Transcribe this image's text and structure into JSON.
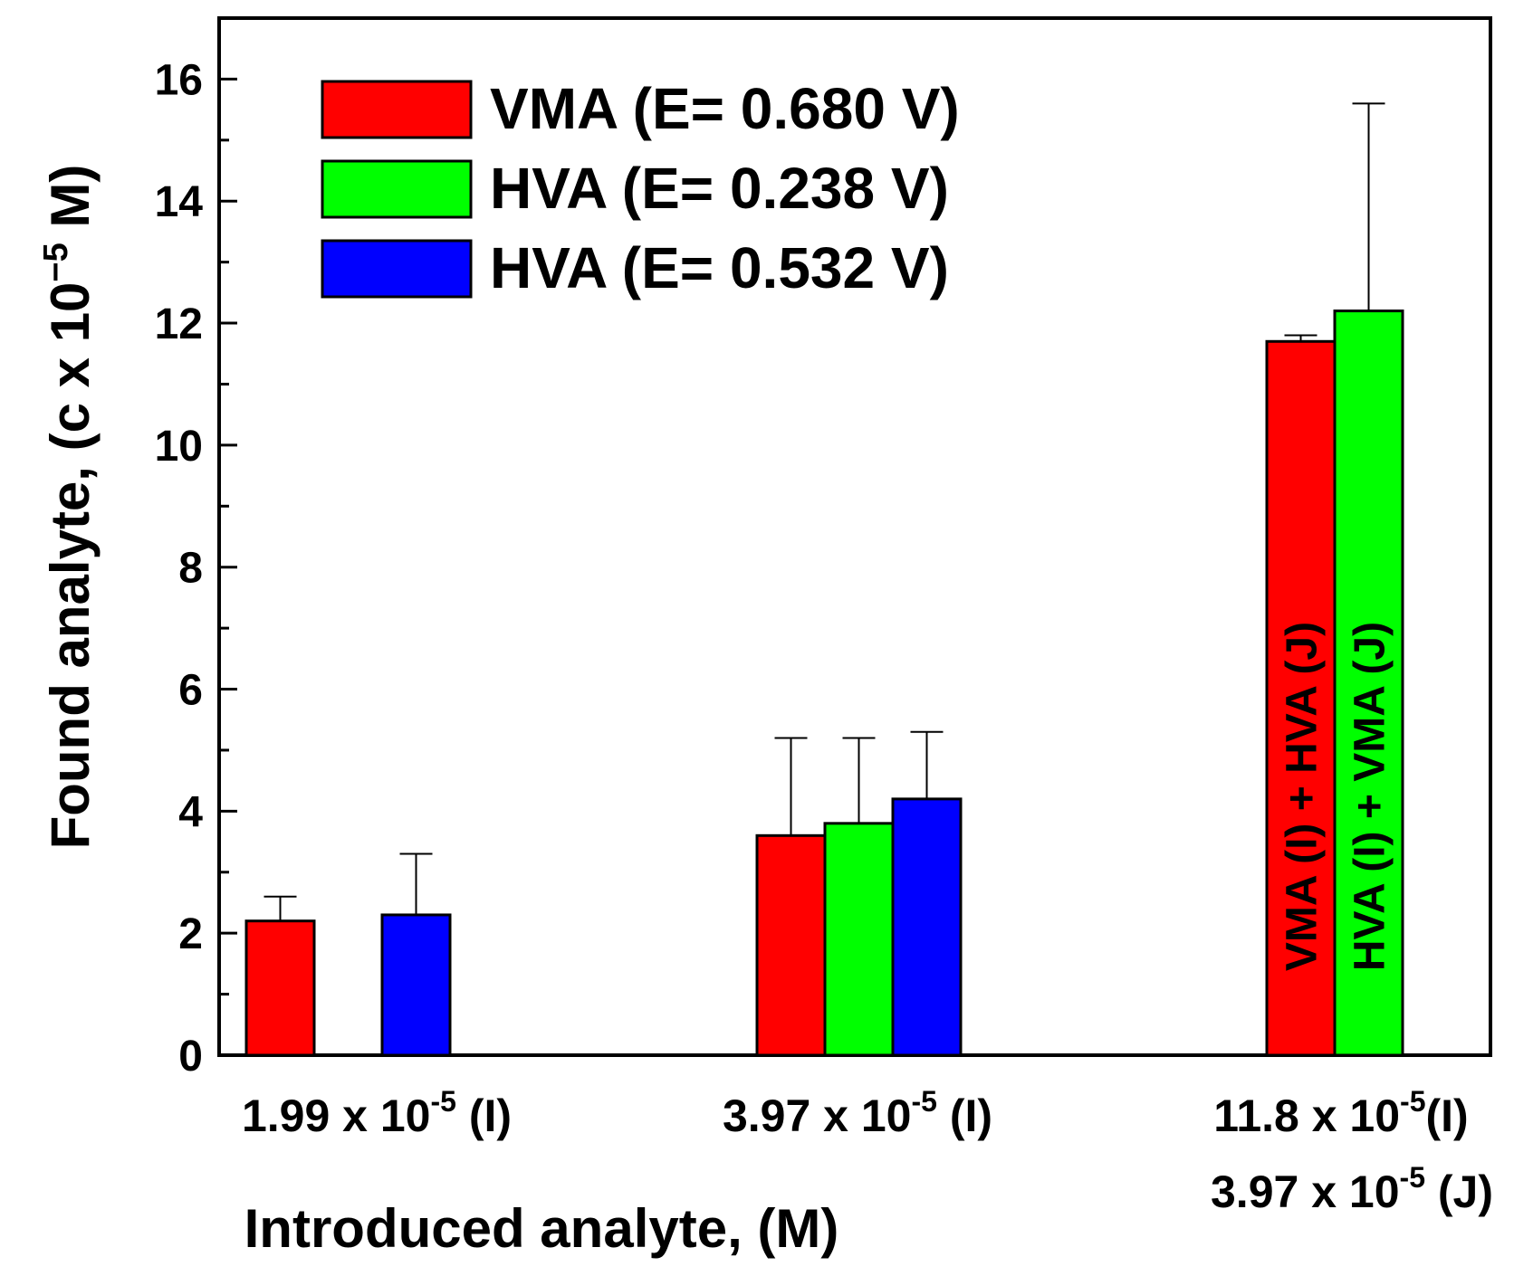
{
  "chart_data": {
    "type": "bar",
    "title": "",
    "xlabel": "Introduced analyte, (M)",
    "ylabel": {
      "main": "Found analyte, (c x 10",
      "exp": "−5",
      "unit": " M)"
    },
    "ylim": [
      0,
      17
    ],
    "yticks": [
      "0",
      "2",
      "4",
      "6",
      "8",
      "10",
      "12",
      "14",
      "16"
    ],
    "categories": [
      {
        "lines": [
          {
            "pre": "1.99 x 10",
            "exp": "-5",
            "post": " (I)"
          }
        ]
      },
      {
        "lines": [
          {
            "pre": "3.97 x 10",
            "exp": "-5",
            "post": " (I)"
          }
        ]
      },
      {
        "lines": [
          {
            "pre": "11.8 x 10",
            "exp": "-5",
            "post": "(I)"
          },
          {
            "pre": "3.97 x 10",
            "exp": "-5",
            "post": " (J)"
          }
        ]
      }
    ],
    "series": [
      {
        "name": "VMA (E= 0.680 V)",
        "color": "#ff0000",
        "values": [
          2.2,
          3.6,
          11.7
        ],
        "errors": [
          0.4,
          1.6,
          0.1
        ]
      },
      {
        "name": "HVA (E= 0.238 V)",
        "color": "#00ff00",
        "values": [
          null,
          3.8,
          12.2
        ],
        "errors": [
          null,
          1.4,
          3.4
        ]
      },
      {
        "name": "HVA (E= 0.532 V)",
        "color": "#0000ff",
        "values": [
          2.3,
          4.2,
          null
        ],
        "errors": [
          1.0,
          1.1,
          null
        ]
      }
    ],
    "annotations": [
      {
        "text": "VMA (I) + HVA (J)",
        "category": 2,
        "series": 0
      },
      {
        "text": "HVA (I) + VMA (J)",
        "category": 2,
        "series": 1
      }
    ],
    "legend_position": "top-left",
    "grid": false
  }
}
